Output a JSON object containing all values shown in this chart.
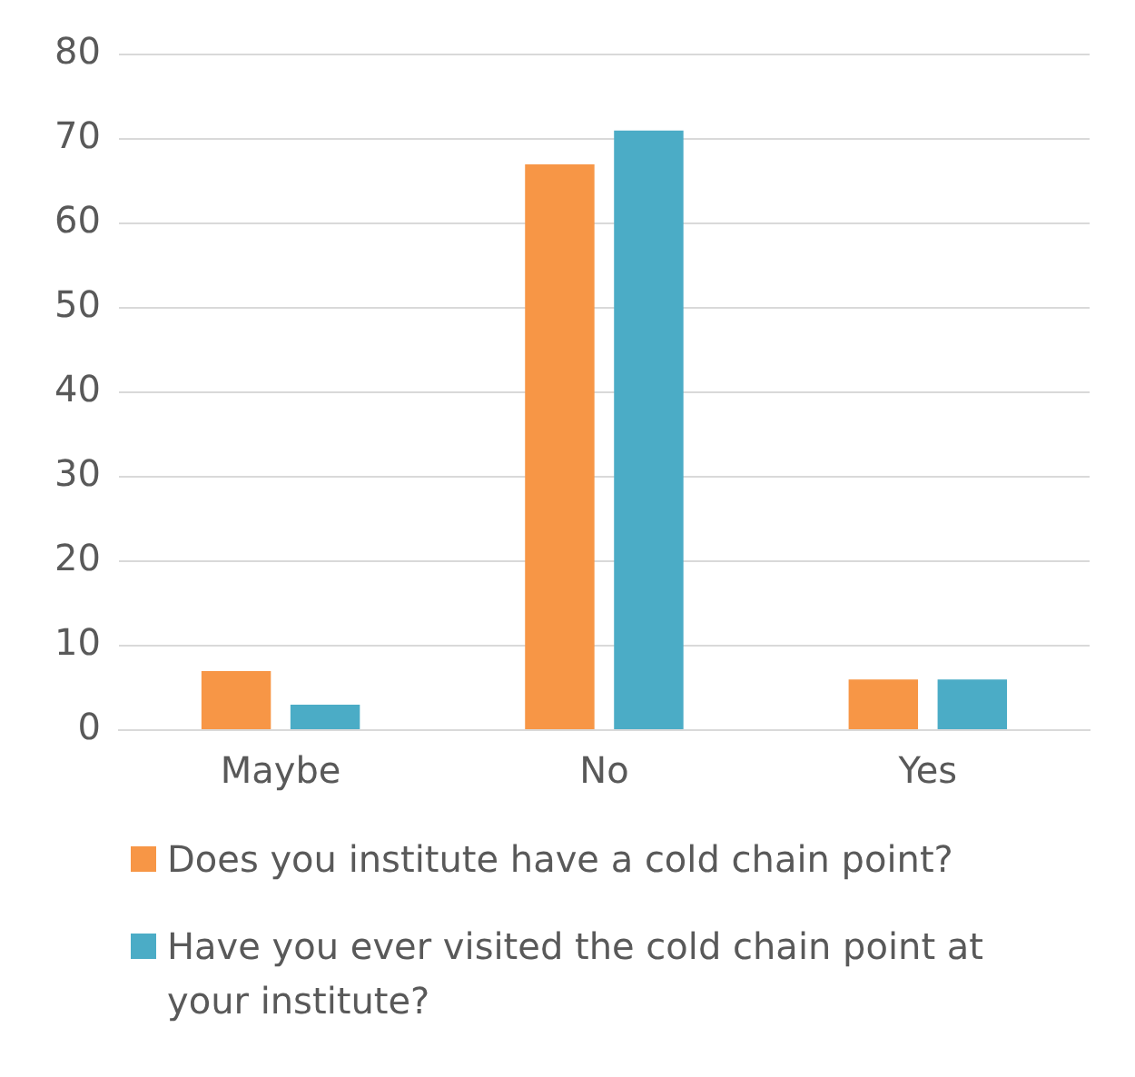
{
  "chart_data": {
    "type": "bar",
    "categories": [
      "Maybe",
      "No",
      "Yes"
    ],
    "series": [
      {
        "name": "Does you institute have a cold chain point?",
        "color": "#f79646",
        "values": [
          7,
          67,
          6
        ]
      },
      {
        "name": "Have you ever visited the cold chain point at your institute?",
        "color": "#4bacc6",
        "values": [
          3,
          71,
          6
        ]
      }
    ],
    "ylim": [
      0,
      80
    ],
    "yticks": [
      0,
      10,
      20,
      30,
      40,
      50,
      60,
      70,
      80
    ],
    "grid": "y",
    "legend": "bottom"
  }
}
